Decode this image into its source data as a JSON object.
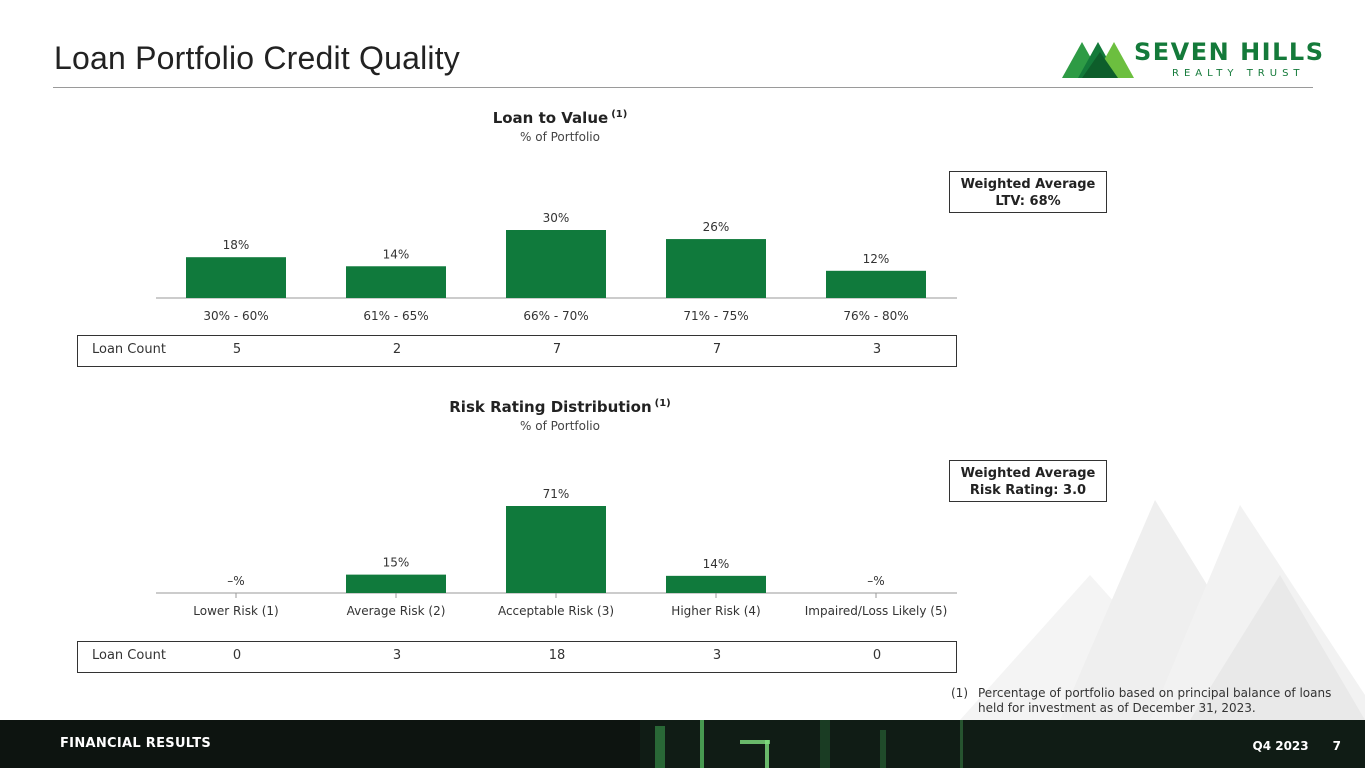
{
  "header": {
    "title": "Loan Portfolio Credit Quality",
    "logo_name": "SEVEN HILLS",
    "logo_sub": "REALTY TRUST"
  },
  "colors": {
    "bar": "#107a3c",
    "brand": "#147a3a",
    "footer_bg": "#0d1410"
  },
  "ltv": {
    "title": "Loan to Value",
    "note_ref": "(1)",
    "subtitle": "% of Portfolio",
    "weighted_line1": "Weighted Average",
    "weighted_line2": "LTV: 68%",
    "count_label": "Loan Count",
    "counts": [
      "5",
      "2",
      "7",
      "7",
      "3"
    ]
  },
  "risk": {
    "title": "Risk Rating Distribution",
    "note_ref": "(1)",
    "subtitle": "% of Portfolio",
    "weighted_line1": "Weighted Average",
    "weighted_line2": "Risk Rating: 3.0",
    "count_label": "Loan Count",
    "counts": [
      "0",
      "3",
      "18",
      "3",
      "0"
    ]
  },
  "chart_data": [
    {
      "type": "bar",
      "title": "Loan to Value",
      "subtitle": "% of Portfolio",
      "categories": [
        "30% - 60%",
        "61% - 65%",
        "66% - 70%",
        "71% - 75%",
        "76% - 80%"
      ],
      "values": [
        18,
        14,
        30,
        26,
        12
      ],
      "labels": [
        "18%",
        "14%",
        "30%",
        "26%",
        "12%"
      ],
      "ylim": [
        0,
        30
      ],
      "grid": false
    },
    {
      "type": "bar",
      "title": "Risk Rating Distribution",
      "subtitle": "% of Portfolio",
      "categories": [
        "Lower Risk (1)",
        "Average Risk (2)",
        "Acceptable Risk (3)",
        "Higher Risk (4)",
        "Impaired/Loss Likely (5)"
      ],
      "values": [
        0,
        15,
        71,
        14,
        0
      ],
      "labels": [
        "–%",
        "15%",
        "71%",
        "14%",
        "–%"
      ],
      "ylim": [
        0,
        71
      ],
      "grid": false
    }
  ],
  "footnote": {
    "num": "(1)",
    "text": "Percentage of portfolio based on principal balance of loans held for investment as of December 31, 2023."
  },
  "footer": {
    "section": "FINANCIAL RESULTS",
    "quarter": "Q4 2023",
    "page": "7"
  }
}
